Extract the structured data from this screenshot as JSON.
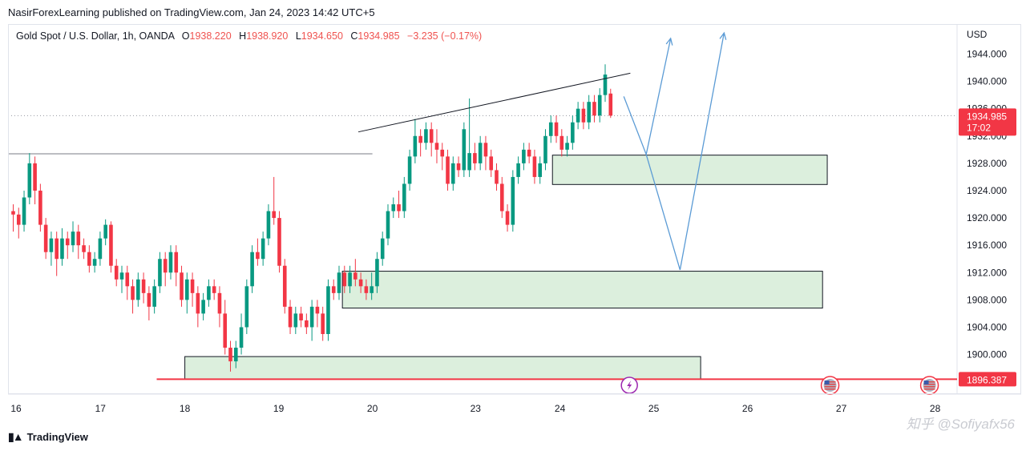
{
  "publisher": "NasirForexLearning published on TradingView.com, Jan 24, 2023 14:42 UTC+5",
  "legend": {
    "symbol": "Gold Spot / U.S. Dollar, 1h, OANDA",
    "open_label": "O",
    "open": "1938.220",
    "high_label": "H",
    "high": "1938.920",
    "low_label": "L",
    "low": "1934.650",
    "close_label": "C",
    "close": "1934.985",
    "change": "−3.235 (−0.17%)"
  },
  "chart_data": {
    "type": "candlestick",
    "currency": "USD",
    "y_ticks": [
      "1944.000",
      "1940.000",
      "1936.000",
      "1932.000",
      "1928.000",
      "1924.000",
      "1920.000",
      "1916.000",
      "1912.000",
      "1908.000",
      "1904.000",
      "1900.000"
    ],
    "y_range": [
      1894.2,
      1948.4
    ],
    "x_labels": [
      {
        "t": 0,
        "label": "16"
      },
      {
        "t": 9,
        "label": "17"
      },
      {
        "t": 18,
        "label": "18"
      },
      {
        "t": 28,
        "label": "19"
      },
      {
        "t": 38,
        "label": "20"
      },
      {
        "t": 49,
        "label": "23"
      },
      {
        "t": 58,
        "label": "24"
      },
      {
        "t": 68,
        "label": "25"
      },
      {
        "t": 78,
        "label": "26"
      },
      {
        "t": 88,
        "label": "27"
      },
      {
        "t": 98,
        "label": "28"
      }
    ],
    "last_price": {
      "value": 1934.985,
      "label": "1934.985",
      "countdown": "17:02",
      "color": "#f23645"
    },
    "support_line": {
      "value": 1896.387,
      "label": "1896.387",
      "t_start": 15,
      "color": "#f23645"
    },
    "horizontal_line": {
      "value": 1929.4,
      "t_end": 38
    },
    "trendline": [
      [
        36.5,
        1932.6
      ],
      [
        65.5,
        1941.2
      ]
    ],
    "zones": [
      {
        "t0": 57.2,
        "t1": 86.5,
        "low": 1924.9,
        "high": 1929.2
      },
      {
        "t0": 34.8,
        "t1": 86,
        "low": 1906.8,
        "high": 1912.2
      },
      {
        "t0": 18,
        "t1": 73,
        "low": 1896.4,
        "high": 1899.7
      }
    ],
    "projection": [
      [
        64.8,
        1937.8
      ],
      [
        67.2,
        1929.3
      ],
      [
        70.8,
        1912.4
      ],
      [
        75.5,
        1947.1
      ]
    ],
    "projection_alt": [
      [
        67.2,
        1929.3
      ],
      [
        69.8,
        1946.3
      ]
    ],
    "candles": [
      [
        1921,
        1920.5,
        1922,
        1918
      ],
      [
        1920.5,
        1919,
        1921.5,
        1917
      ],
      [
        1919,
        1923,
        1924,
        1918
      ],
      [
        1923,
        1928,
        1929.5,
        1922
      ],
      [
        1928,
        1924,
        1929,
        1922
      ],
      [
        1924,
        1919,
        1925,
        1918
      ],
      [
        1919,
        1915,
        1920,
        1914
      ],
      [
        1915,
        1917,
        1918,
        1913
      ],
      [
        1917,
        1914,
        1918,
        1911.5
      ],
      [
        1914,
        1917,
        1918.5,
        1913
      ],
      [
        1917,
        1916,
        1918,
        1914
      ],
      [
        1916,
        1918,
        1919.5,
        1915
      ],
      [
        1918,
        1916,
        1919,
        1914
      ],
      [
        1916,
        1915,
        1917,
        1914
      ],
      [
        1915,
        1913,
        1916,
        1912
      ],
      [
        1913,
        1914,
        1915,
        1912
      ],
      [
        1914,
        1917,
        1918,
        1913
      ],
      [
        1917,
        1919,
        1919.8,
        1916
      ],
      [
        1919,
        1913,
        1919.5,
        1912
      ],
      [
        1913,
        1911,
        1914,
        1910
      ],
      [
        1911,
        1912,
        1913,
        1909
      ],
      [
        1912,
        1910,
        1913,
        1908
      ],
      [
        1910,
        1908,
        1911,
        1906
      ],
      [
        1908,
        1911,
        1912,
        1907
      ],
      [
        1911,
        1909,
        1912,
        1907.5
      ],
      [
        1909,
        1907,
        1910,
        1905
      ],
      [
        1907,
        1910,
        1911,
        1906
      ],
      [
        1910,
        1914,
        1915,
        1909
      ],
      [
        1914,
        1912,
        1915,
        1910
      ],
      [
        1912,
        1915,
        1916,
        1911
      ],
      [
        1915,
        1912,
        1916,
        1910
      ],
      [
        1912,
        1908,
        1913,
        1907
      ],
      [
        1908,
        1911,
        1912,
        1906
      ],
      [
        1911,
        1909,
        1912,
        1907
      ],
      [
        1909,
        1906,
        1910,
        1904
      ],
      [
        1906,
        1908,
        1909,
        1905
      ],
      [
        1908,
        1910,
        1911,
        1907
      ],
      [
        1910,
        1909,
        1911,
        1908
      ],
      [
        1909,
        1906,
        1910,
        1904
      ],
      [
        1906,
        1901,
        1908,
        1900
      ],
      [
        1901,
        1899,
        1902,
        1897.5
      ],
      [
        1899,
        1901,
        1902,
        1898
      ],
      [
        1901,
        1904,
        1906,
        1900
      ],
      [
        1904,
        1910,
        1911,
        1903
      ],
      [
        1910,
        1915,
        1916,
        1909
      ],
      [
        1915,
        1914,
        1917,
        1913
      ],
      [
        1914,
        1917,
        1918,
        1913
      ],
      [
        1917,
        1921,
        1922,
        1916
      ],
      [
        1921,
        1920,
        1926,
        1919
      ],
      [
        1920,
        1913,
        1921,
        1912
      ],
      [
        1913,
        1907,
        1914,
        1906
      ],
      [
        1907,
        1904,
        1908,
        1903
      ],
      [
        1904,
        1906,
        1907,
        1903
      ],
      [
        1906,
        1905,
        1907,
        1904
      ],
      [
        1905,
        1904,
        1906,
        1903
      ],
      [
        1904,
        1907,
        1908,
        1902
      ],
      [
        1907,
        1906,
        1908,
        1904
      ],
      [
        1906,
        1903,
        1907,
        1902
      ],
      [
        1903,
        1910,
        1911,
        1902
      ],
      [
        1910,
        1909,
        1911,
        1908
      ],
      [
        1909,
        1912,
        1913,
        1908
      ],
      [
        1912,
        1910,
        1913,
        1909
      ],
      [
        1910,
        1912,
        1913,
        1909
      ],
      [
        1912,
        1911,
        1914,
        1910
      ],
      [
        1911,
        1910,
        1912,
        1909
      ],
      [
        1910,
        1909,
        1911,
        1908
      ],
      [
        1909,
        1910,
        1912,
        1908
      ],
      [
        1910,
        1914,
        1915,
        1909
      ],
      [
        1914,
        1917,
        1918,
        1913
      ],
      [
        1917,
        1921,
        1922,
        1916
      ],
      [
        1921,
        1922,
        1923,
        1920
      ],
      [
        1922,
        1921,
        1924,
        1920
      ],
      [
        1921,
        1925,
        1926,
        1920
      ],
      [
        1925,
        1929,
        1930,
        1924
      ],
      [
        1929,
        1932,
        1934.5,
        1928
      ],
      [
        1932,
        1931,
        1933,
        1929
      ],
      [
        1931,
        1933,
        1934,
        1930
      ],
      [
        1933,
        1931,
        1934,
        1929
      ],
      [
        1931,
        1930,
        1933,
        1928
      ],
      [
        1930,
        1929,
        1931,
        1927
      ],
      [
        1929,
        1925,
        1930,
        1924
      ],
      [
        1925,
        1928,
        1929,
        1924
      ],
      [
        1928,
        1927,
        1929,
        1926
      ],
      [
        1927,
        1933,
        1934,
        1926
      ],
      [
        1927,
        1929.5,
        1937.5,
        1926
      ],
      [
        1929.5,
        1928,
        1931,
        1927
      ],
      [
        1928,
        1931,
        1932,
        1927
      ],
      [
        1931,
        1929,
        1932,
        1927
      ],
      [
        1929,
        1927,
        1930,
        1926
      ],
      [
        1927,
        1925,
        1928,
        1924
      ],
      [
        1925,
        1921,
        1926,
        1920
      ],
      [
        1921,
        1919,
        1922,
        1918
      ],
      [
        1919,
        1926,
        1927,
        1918
      ],
      [
        1926,
        1928,
        1929,
        1925
      ],
      [
        1928,
        1930,
        1931,
        1927
      ],
      [
        1930,
        1929,
        1931,
        1928
      ],
      [
        1929,
        1926,
        1930,
        1925
      ],
      [
        1926,
        1928,
        1929,
        1925
      ],
      [
        1928,
        1932,
        1933,
        1927
      ],
      [
        1932,
        1934,
        1935,
        1931
      ],
      [
        1934,
        1932,
        1935,
        1931
      ],
      [
        1932,
        1930,
        1933,
        1929
      ],
      [
        1930,
        1931,
        1932,
        1929
      ],
      [
        1931,
        1934,
        1935,
        1930
      ],
      [
        1934,
        1936,
        1937,
        1933
      ],
      [
        1936,
        1934,
        1937,
        1933
      ],
      [
        1934,
        1937,
        1938,
        1933
      ],
      [
        1937,
        1935,
        1938,
        1934
      ],
      [
        1935,
        1938,
        1939,
        1934
      ],
      [
        1938,
        1941,
        1942.5,
        1937
      ],
      [
        1938.22,
        1934.985,
        1938.92,
        1934.65
      ]
    ],
    "event_icons": [
      {
        "t": 65.4,
        "kind": "lightning"
      },
      {
        "t": 86.8,
        "kind": "flag"
      },
      {
        "t": 97.4,
        "kind": "flag"
      }
    ]
  },
  "footer": {
    "brand": "TradingView",
    "watermark": "知乎 @Sofiyafx56"
  }
}
